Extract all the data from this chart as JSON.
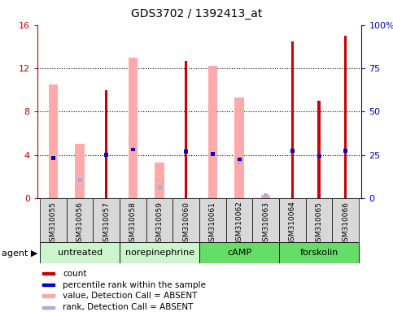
{
  "title": "GDS3702 / 1392413_at",
  "samples": [
    "GSM310055",
    "GSM310056",
    "GSM310057",
    "GSM310058",
    "GSM310059",
    "GSM310060",
    "GSM310061",
    "GSM310062",
    "GSM310063",
    "GSM310064",
    "GSM310065",
    "GSM310066"
  ],
  "red_bars": [
    null,
    null,
    10.0,
    null,
    null,
    12.7,
    null,
    null,
    null,
    14.5,
    9.0,
    15.0
  ],
  "blue_marks": [
    3.7,
    null,
    4.0,
    4.5,
    null,
    4.3,
    4.1,
    3.6,
    null,
    4.4,
    3.9,
    4.4
  ],
  "pink_bars": [
    10.5,
    5.0,
    null,
    13.0,
    3.3,
    null,
    12.2,
    9.3,
    0.3,
    null,
    null,
    null
  ],
  "lightblue_marks": [
    null,
    1.7,
    null,
    null,
    1.0,
    null,
    null,
    3.3,
    0.3,
    null,
    null,
    null
  ],
  "agent_groups": [
    {
      "label": "untreated",
      "start": 0,
      "end": 3,
      "color": "#ccf5cc"
    },
    {
      "label": "norepinephrine",
      "start": 3,
      "end": 6,
      "color": "#ccf5cc"
    },
    {
      "label": "cAMP",
      "start": 6,
      "end": 9,
      "color": "#66dd66"
    },
    {
      "label": "forskolin",
      "start": 9,
      "end": 12,
      "color": "#66dd66"
    }
  ],
  "legend_items": [
    {
      "color": "#cc0000",
      "label": "count"
    },
    {
      "color": "#0000cc",
      "label": "percentile rank within the sample"
    },
    {
      "color": "#ffaaaa",
      "label": "value, Detection Call = ABSENT"
    },
    {
      "color": "#aaaadd",
      "label": "rank, Detection Call = ABSENT"
    }
  ],
  "ylim_left": [
    0,
    16
  ],
  "yticks_left": [
    0,
    4,
    8,
    12,
    16
  ],
  "ytick_labels_right": [
    "0",
    "25",
    "50",
    "75",
    "100%"
  ],
  "pink_color": "#ffaaaa",
  "lightblue_color": "#aaaadd",
  "red_color": "#cc0000",
  "blue_color": "#0000cc",
  "left_tick_color": "#cc0000",
  "right_tick_color": "#0000cc"
}
